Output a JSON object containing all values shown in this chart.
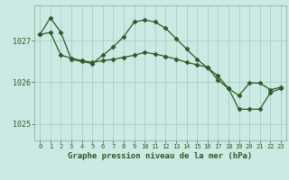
{
  "title": "Graphe pression niveau de la mer (hPa)",
  "bg_color": "#cceae4",
  "grid_color": "#aad4cc",
  "line_color": "#2d5a27",
  "marker_color": "#2d5a27",
  "xlim": [
    -0.5,
    23.5
  ],
  "ylim": [
    1024.6,
    1027.85
  ],
  "yticks": [
    1025,
    1026,
    1027
  ],
  "xticks": [
    0,
    1,
    2,
    3,
    4,
    5,
    6,
    7,
    8,
    9,
    10,
    11,
    12,
    13,
    14,
    15,
    16,
    17,
    18,
    19,
    20,
    21,
    22,
    23
  ],
  "series1_x": [
    0,
    1,
    2,
    3,
    4,
    5,
    6,
    7,
    8,
    9,
    10,
    11,
    12,
    13,
    14,
    15,
    16,
    17,
    18,
    19,
    20,
    21,
    22,
    23
  ],
  "series1_y": [
    1027.15,
    1027.55,
    1027.2,
    1026.55,
    1026.5,
    1026.45,
    1026.65,
    1026.85,
    1027.1,
    1027.45,
    1027.5,
    1027.45,
    1027.3,
    1027.05,
    1026.8,
    1026.55,
    1026.35,
    1026.15,
    1025.85,
    1025.35,
    1025.35,
    1025.35,
    1025.75,
    1025.85
  ],
  "series2_x": [
    0,
    1,
    2,
    3,
    4,
    5,
    6,
    7,
    8,
    9,
    10,
    11,
    12,
    13,
    14,
    15,
    16,
    17,
    18,
    19,
    20,
    21,
    22,
    23
  ],
  "series2_y": [
    1027.15,
    1027.2,
    1026.65,
    1026.58,
    1026.52,
    1026.48,
    1026.52,
    1026.55,
    1026.6,
    1026.65,
    1026.72,
    1026.68,
    1026.62,
    1026.56,
    1026.48,
    1026.42,
    1026.36,
    1026.05,
    1025.85,
    1025.68,
    1025.98,
    1025.98,
    1025.82,
    1025.88
  ]
}
